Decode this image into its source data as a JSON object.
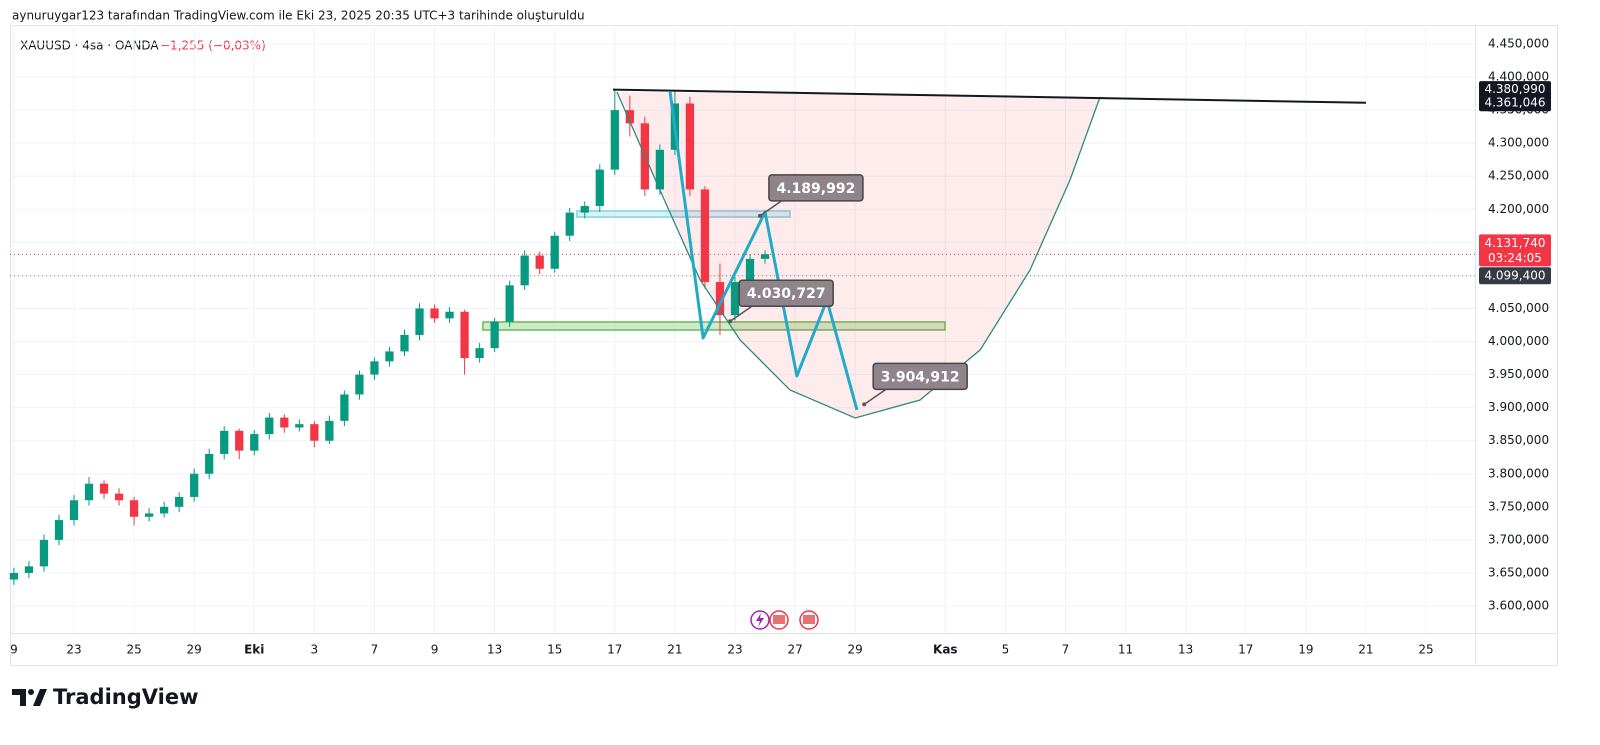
{
  "chart_data": {
    "type": "candlestick",
    "title": "aynuruygar123 tarafından TradingView.com ile Eki 23, 2025 20:35 UTC+3 tarihinde oluşturuldu",
    "symbol": "XAUUSD · 4sa · OANDA",
    "change": "−1,255 (−0,03%)",
    "brand": "TradingView",
    "up_color": "#089981",
    "down_color": "#f23645",
    "grid": true,
    "xlim": [
      -0.13,
      48.63
    ],
    "ylim": [
      3559.2,
      4478.7
    ],
    "xticks": [
      {
        "value": 0,
        "label": "9"
      },
      {
        "value": 2,
        "label": "23"
      },
      {
        "value": 4,
        "label": "25"
      },
      {
        "value": 6,
        "label": "29"
      },
      {
        "value": 8,
        "label": "Eki"
      },
      {
        "value": 10,
        "label": "3"
      },
      {
        "value": 12,
        "label": "7"
      },
      {
        "value": 14,
        "label": "9"
      },
      {
        "value": 16,
        "label": "13"
      },
      {
        "value": 18,
        "label": "15"
      },
      {
        "value": 20,
        "label": "17"
      },
      {
        "value": 22,
        "label": "21"
      },
      {
        "value": 24,
        "label": "23"
      },
      {
        "value": 26,
        "label": "27"
      },
      {
        "value": 28,
        "label": "29"
      },
      {
        "value": 31,
        "label": "Kas"
      },
      {
        "value": 33,
        "label": "5"
      },
      {
        "value": 35,
        "label": "7"
      },
      {
        "value": 37,
        "label": "11"
      },
      {
        "value": 39,
        "label": "13"
      },
      {
        "value": 41,
        "label": "17"
      },
      {
        "value": 43,
        "label": "19"
      },
      {
        "value": 45,
        "label": "21"
      },
      {
        "value": 47,
        "label": "25"
      }
    ],
    "yticks": [
      {
        "value": 3600,
        "label": "3.600,000"
      },
      {
        "value": 3650,
        "label": "3.650,000"
      },
      {
        "value": 3700,
        "label": "3.700,000"
      },
      {
        "value": 3750,
        "label": "3.750,000"
      },
      {
        "value": 3800,
        "label": "3.800,000"
      },
      {
        "value": 3850,
        "label": "3.850,000"
      },
      {
        "value": 3900,
        "label": "3.900,000"
      },
      {
        "value": 3950,
        "label": "3.950,000"
      },
      {
        "value": 4000,
        "label": "4.000,000"
      },
      {
        "value": 4050,
        "label": "4.050,000"
      },
      {
        "value": 4100,
        "label": "4.100,000"
      },
      {
        "value": 4150,
        "label": "4.150,000"
      },
      {
        "value": 4200,
        "label": "4.200,000"
      },
      {
        "value": 4250,
        "label": "4.250,000"
      },
      {
        "value": 4300,
        "label": "4.300,000"
      },
      {
        "value": 4350,
        "label": "4.350,000"
      },
      {
        "value": 4400,
        "label": "4.400,000"
      },
      {
        "value": 4450,
        "label": "4.450,000"
      }
    ],
    "candles": {
      "x": [
        0,
        0.5,
        1,
        1.5,
        2,
        2.5,
        3,
        3.5,
        4,
        4.5,
        5,
        5.5,
        6,
        6.5,
        7,
        7.5,
        8,
        8.5,
        9,
        9.5,
        10,
        10.5,
        11,
        11.5,
        12,
        12.5,
        13,
        13.5,
        14,
        14.5,
        15,
        15.5,
        16,
        16.5,
        17,
        17.5,
        18,
        18.5,
        19,
        19.5,
        20,
        20.5,
        21,
        21.5,
        22,
        22.5,
        23,
        23.5,
        24,
        24.5,
        25
      ],
      "open": [
        3640,
        3650,
        3660,
        3700,
        3730,
        3760,
        3785,
        3770,
        3760,
        3735,
        3740,
        3750,
        3765,
        3800,
        3830,
        3865,
        3835,
        3860,
        3885,
        3870,
        3875,
        3850,
        3880,
        3920,
        3950,
        3970,
        3985,
        4010,
        4050,
        4035,
        4045,
        3975,
        3990,
        4030,
        4085,
        4130,
        4110,
        4160,
        4195,
        4205,
        4260,
        4350,
        4330,
        4230,
        4290,
        4360,
        4230,
        4090,
        4040,
        4090,
        4125
      ],
      "high": [
        3658,
        3668,
        3708,
        3738,
        3768,
        3795,
        3790,
        3778,
        3765,
        3748,
        3758,
        3772,
        3808,
        3838,
        3872,
        3868,
        3866,
        3892,
        3890,
        3882,
        3880,
        3888,
        3926,
        3956,
        3976,
        3992,
        4018,
        4058,
        4056,
        4052,
        4048,
        3998,
        4036,
        4092,
        4138,
        4136,
        4166,
        4202,
        4212,
        4268,
        4381,
        4372,
        4340,
        4298,
        4381,
        4370,
        4235,
        4118,
        4098,
        4132,
        4138
      ],
      "low": [
        3632,
        3642,
        3652,
        3692,
        3722,
        3752,
        3762,
        3752,
        3722,
        3728,
        3734,
        3742,
        3758,
        3792,
        3822,
        3822,
        3828,
        3852,
        3862,
        3864,
        3840,
        3845,
        3872,
        3912,
        3942,
        3962,
        3978,
        4002,
        4028,
        4028,
        3950,
        3968,
        3984,
        4022,
        4078,
        4102,
        4104,
        4152,
        4186,
        4196,
        4252,
        4310,
        4220,
        4222,
        4282,
        4220,
        4080,
        4010,
        4032,
        4082,
        4118
      ],
      "close": [
        3650,
        3660,
        3700,
        3730,
        3760,
        3785,
        3770,
        3760,
        3735,
        3740,
        3750,
        3765,
        3800,
        3830,
        3865,
        3835,
        3860,
        3885,
        3870,
        3875,
        3850,
        3880,
        3920,
        3950,
        3970,
        3985,
        4010,
        4050,
        4035,
        4045,
        3975,
        3990,
        4030,
        4085,
        4130,
        4110,
        4160,
        4195,
        4205,
        4260,
        4350,
        4330,
        4230,
        4290,
        4360,
        4230,
        4090,
        4040,
        4090,
        4125,
        4132
      ]
    },
    "trendline": {
      "x": [
        19.94,
        45
      ],
      "y": [
        4380.99,
        4361.046
      ],
      "color": "#131722"
    },
    "cup_curve": {
      "x": [
        20.07,
        21.5,
        22.84,
        24.17,
        25.83,
        28.0,
        30.16,
        32.16,
        33.82,
        35.15,
        36.15
      ],
      "y": [
        4377.4,
        4229.2,
        4093.1,
        4002.3,
        3926.7,
        3884.4,
        3911.6,
        3987.3,
        4108.2,
        4244.3,
        4369.8
      ],
      "color": "#2e8b7a",
      "fill": "rgba(242,54,69,0.1)"
    },
    "zigzag": {
      "x": [
        21.84,
        22.94,
        25.0,
        26.06,
        27.06,
        28.06
      ],
      "y": [
        4377.4,
        4005.3,
        4195.9,
        3947.9,
        4062.8,
        3896.5
      ],
      "color": "#22abc6"
    },
    "zones": [
      {
        "x": [
          18.74,
          25.83
        ],
        "y": [
          4188.3,
          4197.4
        ],
        "color": "#7fd3e0"
      },
      {
        "x": [
          15.61,
          30.99
        ],
        "y": [
          4017.5,
          4029.6
        ],
        "color": "#66bb55"
      }
    ],
    "callouts": [
      {
        "x": 24.83,
        "value": 4189.992,
        "label": "4.189,992"
      },
      {
        "x": 23.84,
        "value": 4030.727,
        "label": "4.030,727"
      },
      {
        "x": 28.3,
        "value": 3904.912,
        "label": "3.904,912"
      }
    ],
    "price_lines": [
      {
        "value": 4131.74,
        "color": "#f23645"
      },
      {
        "value": 4099.4,
        "color": "#888888"
      }
    ],
    "price_tags": [
      {
        "value": 4380.99,
        "label": "4.380,990",
        "color": "#131722"
      },
      {
        "value": 4361.046,
        "label": "4.361,046",
        "color": "#131722"
      },
      {
        "value": 4131.74,
        "label": "4.131,740",
        "color": "#f23645",
        "countdown": "03:24:05"
      },
      {
        "value": 4099.4,
        "label": "4.099,400",
        "color": "#363a45"
      }
    ]
  }
}
